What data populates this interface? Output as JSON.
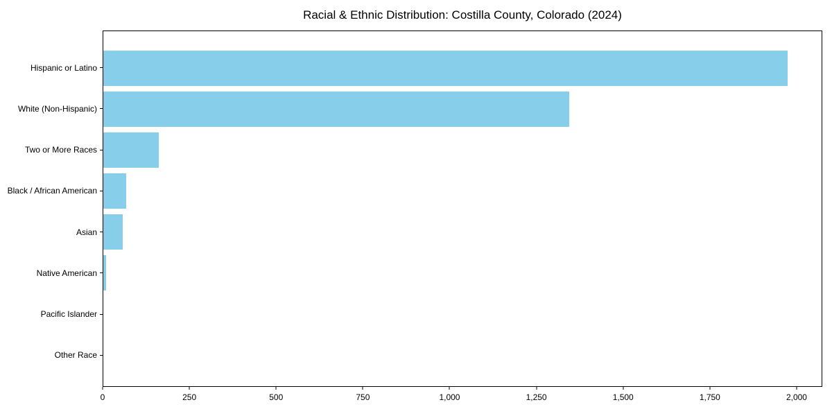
{
  "chart_data": {
    "type": "bar",
    "orientation": "horizontal",
    "title": "Racial & Ethnic Distribution: Costilla County, Colorado (2024)",
    "xlabel": "",
    "ylabel": "",
    "categories": [
      "Hispanic or Latino",
      "White (Non-Hispanic)",
      "Two or More Races",
      "Black / African American",
      "Asian",
      "Native American",
      "Pacific Islander",
      "Other Race"
    ],
    "values": [
      1975,
      1345,
      160,
      66,
      56,
      8,
      0,
      0
    ],
    "xlim": [
      0,
      2074
    ],
    "xticks": [
      0,
      250,
      500,
      750,
      1000,
      1250,
      1500,
      1750,
      2000
    ],
    "xtick_labels": [
      "0",
      "250",
      "500",
      "750",
      "1,000",
      "1,250",
      "1,500",
      "1,750",
      "2,000"
    ],
    "grid": false,
    "legend": null,
    "bar_color": "#87CEEB",
    "background_color": "#ffffff",
    "axis_color": "#000000"
  }
}
